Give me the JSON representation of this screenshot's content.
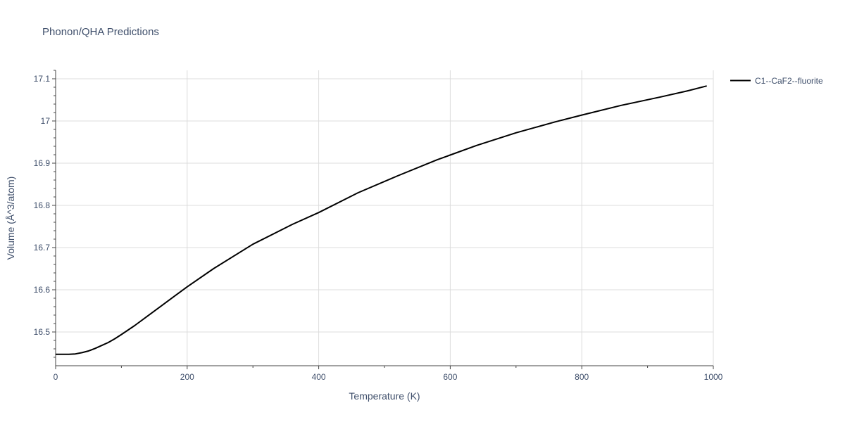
{
  "chart_data": {
    "type": "line",
    "title": "Phonon/QHA Predictions",
    "xlabel": "Temperature (K)",
    "ylabel": "Volume (Å^3/atom)",
    "xlim": [
      0,
      1000
    ],
    "ylim": [
      16.42,
      17.12
    ],
    "x_ticks": [
      0,
      200,
      400,
      600,
      800,
      1000
    ],
    "x_tick_labels": [
      "0",
      "200",
      "400",
      "600",
      "800",
      "1000"
    ],
    "y_ticks": [
      16.5,
      16.6,
      16.7,
      16.8,
      16.9,
      17.0,
      17.1
    ],
    "y_tick_labels": [
      "16.5",
      "16.6",
      "16.7",
      "16.8",
      "16.9",
      "17",
      "17.1"
    ],
    "grid": true,
    "legend_position": "top-right-outside",
    "series": [
      {
        "name": "C1--CaF2--fluorite",
        "color": "#000000",
        "x": [
          0,
          10,
          20,
          30,
          40,
          50,
          60,
          70,
          80,
          90,
          100,
          120,
          140,
          160,
          180,
          200,
          240,
          300,
          360,
          400,
          460,
          520,
          580,
          640,
          700,
          760,
          800,
          860,
          920,
          960,
          990
        ],
        "y": [
          16.447,
          16.447,
          16.447,
          16.448,
          16.451,
          16.455,
          16.461,
          16.468,
          16.475,
          16.484,
          16.494,
          16.515,
          16.538,
          16.561,
          16.584,
          16.607,
          16.65,
          16.708,
          16.755,
          16.783,
          16.83,
          16.87,
          16.908,
          16.942,
          16.972,
          16.998,
          17.014,
          17.037,
          17.057,
          17.071,
          17.083
        ]
      }
    ]
  }
}
